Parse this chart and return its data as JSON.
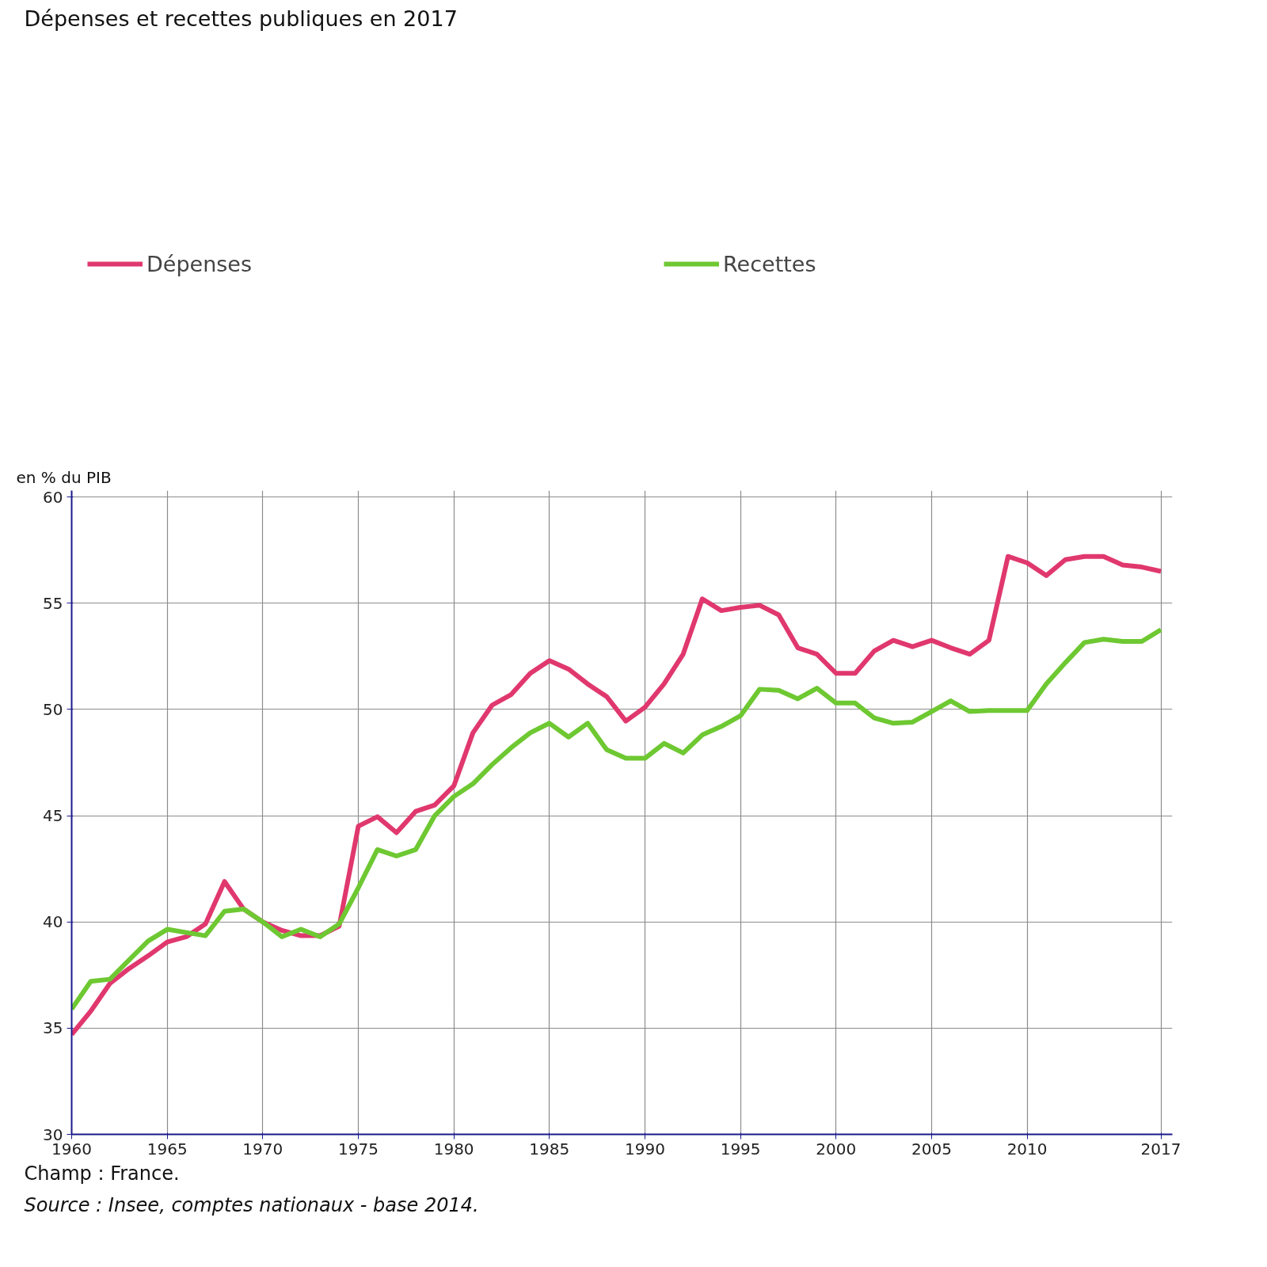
{
  "chart_data": {
    "type": "line",
    "title": "Dépenses et recettes publiques en 2017",
    "ylabel": "en % du PIB",
    "x": [
      1960,
      1961,
      1962,
      1963,
      1964,
      1965,
      1966,
      1967,
      1968,
      1969,
      1970,
      1971,
      1972,
      1973,
      1974,
      1975,
      1976,
      1977,
      1978,
      1979,
      1980,
      1981,
      1982,
      1983,
      1984,
      1985,
      1986,
      1987,
      1988,
      1989,
      1990,
      1991,
      1992,
      1993,
      1994,
      1995,
      1996,
      1997,
      1998,
      1999,
      2000,
      2001,
      2002,
      2003,
      2004,
      2005,
      2006,
      2007,
      2008,
      2009,
      2010,
      2011,
      2012,
      2013,
      2014,
      2015,
      2016,
      2017
    ],
    "series": [
      {
        "name": "Dépenses",
        "color": "#e0386e",
        "values": [
          34.7,
          35.8,
          37.1,
          37.8,
          38.4,
          39.05,
          39.3,
          39.9,
          41.9,
          40.6,
          40.0,
          39.6,
          39.35,
          39.35,
          39.8,
          44.5,
          44.95,
          44.2,
          45.2,
          45.5,
          46.4,
          48.9,
          50.2,
          50.7,
          51.7,
          52.3,
          51.9,
          51.2,
          50.6,
          49.45,
          50.1,
          51.2,
          52.6,
          55.2,
          54.65,
          54.8,
          54.9,
          54.45,
          52.9,
          52.6,
          51.7,
          51.7,
          52.75,
          53.25,
          52.95,
          53.25,
          52.9,
          52.6,
          53.25,
          57.2,
          56.9,
          56.3,
          57.05,
          57.2,
          57.2,
          56.8,
          56.7,
          56.5
        ]
      },
      {
        "name": "Recettes",
        "color": "#6ec832",
        "values": [
          35.9,
          37.2,
          37.3,
          38.2,
          39.1,
          39.65,
          39.5,
          39.35,
          40.5,
          40.6,
          40.0,
          39.3,
          39.65,
          39.3,
          39.9,
          41.6,
          43.4,
          43.1,
          43.4,
          45.0,
          45.9,
          46.5,
          47.4,
          48.2,
          48.9,
          49.35,
          48.7,
          49.35,
          48.1,
          47.7,
          47.7,
          48.4,
          47.95,
          48.8,
          49.2,
          49.7,
          50.95,
          50.9,
          50.5,
          51.0,
          50.3,
          50.3,
          49.6,
          49.35,
          49.4,
          49.9,
          50.4,
          49.9,
          49.95,
          49.95,
          49.95,
          51.2,
          52.2,
          53.15,
          53.3,
          53.2,
          53.2,
          53.75
        ]
      }
    ],
    "xlim": [
      1960,
      2017.6
    ],
    "ylim": [
      30,
      60.3
    ],
    "xticks": [
      1960,
      1965,
      1970,
      1975,
      1980,
      1985,
      1990,
      1995,
      2000,
      2005,
      2010,
      2017
    ],
    "yticks": [
      30,
      35,
      40,
      45,
      50,
      55,
      60
    ],
    "grid": true,
    "legend": "top",
    "marker": "none",
    "line_style": "solid",
    "annotations": [
      "Champ : France.",
      "Source : Insee, comptes nationaux - base 2014."
    ]
  }
}
